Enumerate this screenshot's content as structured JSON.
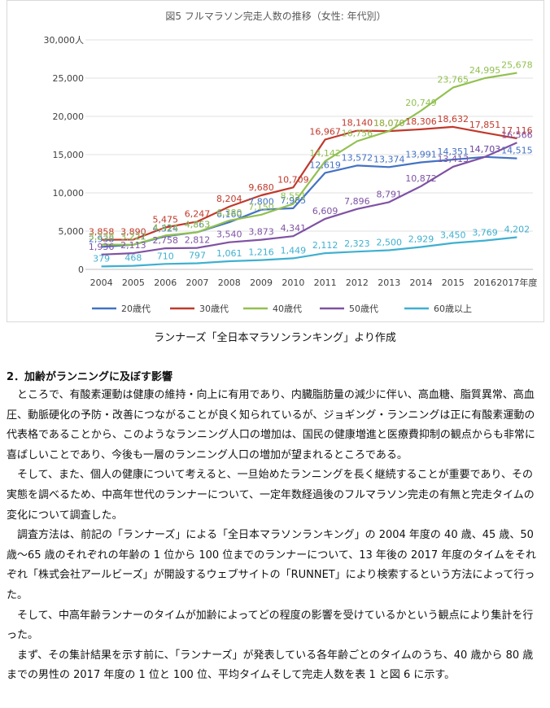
{
  "chart_data": {
    "type": "line",
    "title": "図5  フルマラソン完走人数の推移（女性: 年代別）",
    "ylim": [
      0,
      30000
    ],
    "y_ticks": [
      "0",
      "5,000",
      "10,000",
      "15,000",
      "20,000",
      "25,000",
      "30,000人"
    ],
    "x": [
      2004,
      2005,
      2006,
      2007,
      2008,
      2009,
      2010,
      2011,
      2012,
      2013,
      2014,
      2015,
      2016,
      2017
    ],
    "x_tick_labels": [
      "2004",
      "2005",
      "2006",
      "2007",
      "2008",
      "2009",
      "2010",
      "2011",
      "2012",
      "2013",
      "2014",
      "2015",
      "2016",
      "2017年度"
    ],
    "legend_position": "bottom",
    "grid": true,
    "series": [
      {
        "name": "20歳代",
        "color": "#4472c4",
        "values": [
          2938,
          3221,
          4324,
          4863,
          6160,
          7800,
          7985,
          12619,
          13572,
          13374,
          13991,
          14351,
          14703,
          14515
        ],
        "labels": [
          "2,938",
          "3,221",
          "4,324",
          "4,863",
          "6,160",
          "7,800",
          "7,985",
          "12,619",
          "13,572",
          "13,374",
          "13,991",
          "14,351",
          "14,703",
          "14,515"
        ]
      },
      {
        "name": "30歳代",
        "color": "#c0392b",
        "values": [
          3858,
          3890,
          5475,
          6247,
          8204,
          9680,
          10709,
          16967,
          18140,
          18070,
          18306,
          18632,
          17851,
          17116
        ],
        "labels": [
          "3,858",
          "3,890",
          "5,475",
          "6,247",
          "8,204",
          "9,680",
          "10,709",
          "16,967",
          "18,140",
          "18,070",
          "18,306",
          "18,632",
          "17,851",
          "17,116"
        ]
      },
      {
        "name": "40歳代",
        "color": "#92c050",
        "values": [
          3238,
          3222,
          4424,
          4853,
          6380,
          7150,
          8551,
          14142,
          16756,
          18070,
          20749,
          23765,
          24995,
          25678
        ],
        "labels": [
          "3,238",
          "3,222",
          "4,424",
          "4,853",
          "6,380",
          "7,150",
          "8,551",
          "14,142",
          "16,756",
          "18,070",
          "20,749",
          "23,765",
          "24,995",
          "25,678"
        ]
      },
      {
        "name": "50歳代",
        "color": "#7f52a3",
        "values": [
          1936,
          2113,
          2758,
          2812,
          3540,
          3873,
          4341,
          6609,
          7896,
          8791,
          10872,
          13413,
          14703,
          16566
        ],
        "labels": [
          "1,936",
          "2,113",
          "2,758",
          "2,812",
          "3,540",
          "3,873",
          "4,341",
          "6,609",
          "7,896",
          "8,791",
          "10,872",
          "13,413",
          "14,703",
          "16,566"
        ]
      },
      {
        "name": "60歳以上",
        "color": "#3fb0d0",
        "values": [
          379,
          468,
          710,
          797,
          1061,
          1216,
          1449,
          2112,
          2323,
          2500,
          2929,
          3450,
          3769,
          4202
        ],
        "labels": [
          "379",
          "468",
          "710",
          "797",
          "1,061",
          "1,216",
          "1,449",
          "2,112",
          "2,323",
          "2,500",
          "2,929",
          "3,450",
          "3,769",
          "4,202"
        ]
      }
    ]
  },
  "caption": "ランナーズ「全日本マラソンランキング」より作成",
  "section_title": "2．加齢がランニングに及ぼす影響",
  "paragraphs": [
    "ところで、有酸素運動は健康の維持・向上に有用であり、内臓脂肪量の減少に伴い、高血糖、脂質異常、高血圧、動脈硬化の予防・改善につながることが良く知られているが、ジョギング・ランニングは正に有酸素運動の代表格であることから、このようなランニング人口の増加は、国民の健康増進と医療費抑制の観点からも非常に喜ばしいことであり、今後も一層のランニング人口の増加が望まれるところである。",
    "そして、また、個人の健康について考えると、一旦始めたランニングを長く継続することが重要であり、その実態を調べるため、中高年世代のランナーについて、一定年数経過後のフルマラソン完走の有無と完走タイムの変化について調査した。",
    "調査方法は、前記の「ランナーズ」による「全日本マラソンランキング」の 2004 年度の 40 歳、45 歳、50 歳～65 歳のそれぞれの年齢の 1 位から 100 位までのランナーについて、13 年後の 2017 年度のタイムをそれぞれ「株式会社アールビーズ」が開設するウェブサイトの「RUNNET」により検索するという方法によって行った。",
    "そして、中高年齢ランナーのタイムが加齢によってどの程度の影響を受けているかという観点により集計を行った。",
    "まず、その集計結果を示す前に、「ランナーズ」が発表している各年齢ごとのタイムのうち、40 歳から 80 歳までの男性の 2017 年度の 1 位と 100 位、平均タイムそして完走人数を表 1 と図 6 に示す。"
  ]
}
